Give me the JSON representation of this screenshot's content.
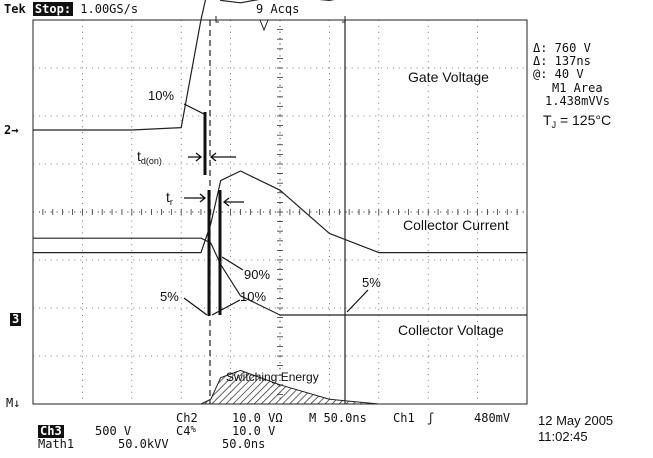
{
  "header": {
    "brand": "Tek",
    "state": "Stop:",
    "sample_rate": "1.00GS/s",
    "acqs": "9 Acqs"
  },
  "cursor_readout": {
    "delta_v": "Δ: 760 V",
    "delta_t": "Δ: 137ns",
    "at_v": "@: 40 V",
    "area_label": "M1 Area",
    "area_value": "1.438mVVs",
    "tj_main": "T",
    "tj_sub": "J",
    "tj_rest": " = 125°C"
  },
  "channel_markers": {
    "ch2": "2→",
    "ch3": "3",
    "math": "M↓"
  },
  "footer": {
    "row1_ch2": "Ch2",
    "row1_ch2_scale": "10.0 VΩ",
    "row1_timebase": "M 50.0ns",
    "row1_trig_ch": "Ch1",
    "row1_trig_sym": "ʃ",
    "row1_trig_level": "480mV",
    "row2_ch3": "Ch3",
    "row2_ch3_scale": "500 V",
    "row2_c4": "C4",
    "row2_c4_sym": "%",
    "row2_c4_scale": "10.0 V",
    "row3_math": "Math1",
    "row3_math_scale": "50.0kVV",
    "row3_math_time": "50.0ns",
    "date": "12 May 2005",
    "time": "11:02:45"
  },
  "chart_data": {
    "type": "line",
    "title": "",
    "xlabel": "",
    "ylabel": "",
    "grid": true,
    "x_divisions": 10,
    "y_divisions": 8,
    "x_unit": "ns",
    "x_per_div": 50,
    "x": [
      0,
      50,
      100,
      150,
      170,
      180,
      190,
      210,
      250,
      300,
      350,
      400,
      450,
      500
    ],
    "series": [
      {
        "name": "Gate Voltage",
        "colour": "#222222",
        "values": [
          0.0,
          0.0,
          0.0,
          0.05,
          2.3,
          3.2,
          2.7,
          2.65,
          2.8,
          2.7,
          2.9,
          3.0,
          3.1,
          3.1
        ]
      },
      {
        "name": "Collector Current",
        "colour": "#222222",
        "values": [
          -0.2,
          -0.2,
          -0.2,
          -0.2,
          -0.2,
          0.4,
          1.3,
          1.5,
          1.1,
          0.2,
          -0.2,
          -0.2,
          -0.2,
          -0.2
        ]
      },
      {
        "name": "Collector Voltage",
        "colour": "#222222",
        "values": [
          1.6,
          1.6,
          1.6,
          1.6,
          1.6,
          1.5,
          1.05,
          0.4,
          0.0,
          0.0,
          0.0,
          0.0,
          0.0,
          0.0
        ]
      },
      {
        "name": "Switching Energy",
        "colour": "#222222",
        "filled": true,
        "values": [
          0.0,
          0.0,
          0.0,
          0.0,
          0.0,
          0.1,
          0.55,
          0.7,
          0.4,
          0.1,
          0.0,
          0.0,
          0.0,
          0.0
        ]
      }
    ],
    "annotations": {
      "gate_label": "Gate Voltage",
      "current_label": "Collector Current",
      "voltage_label": "Collector Voltage",
      "energy_label": "Switching Energy",
      "p10_top": "10%",
      "td_main": "t",
      "td_sub": "d(on)",
      "tr_main": "t",
      "tr_sub": "r",
      "p90": "90%",
      "p5_left": "5%",
      "p10_bottom": "10%",
      "p5_right": "5%"
    }
  }
}
